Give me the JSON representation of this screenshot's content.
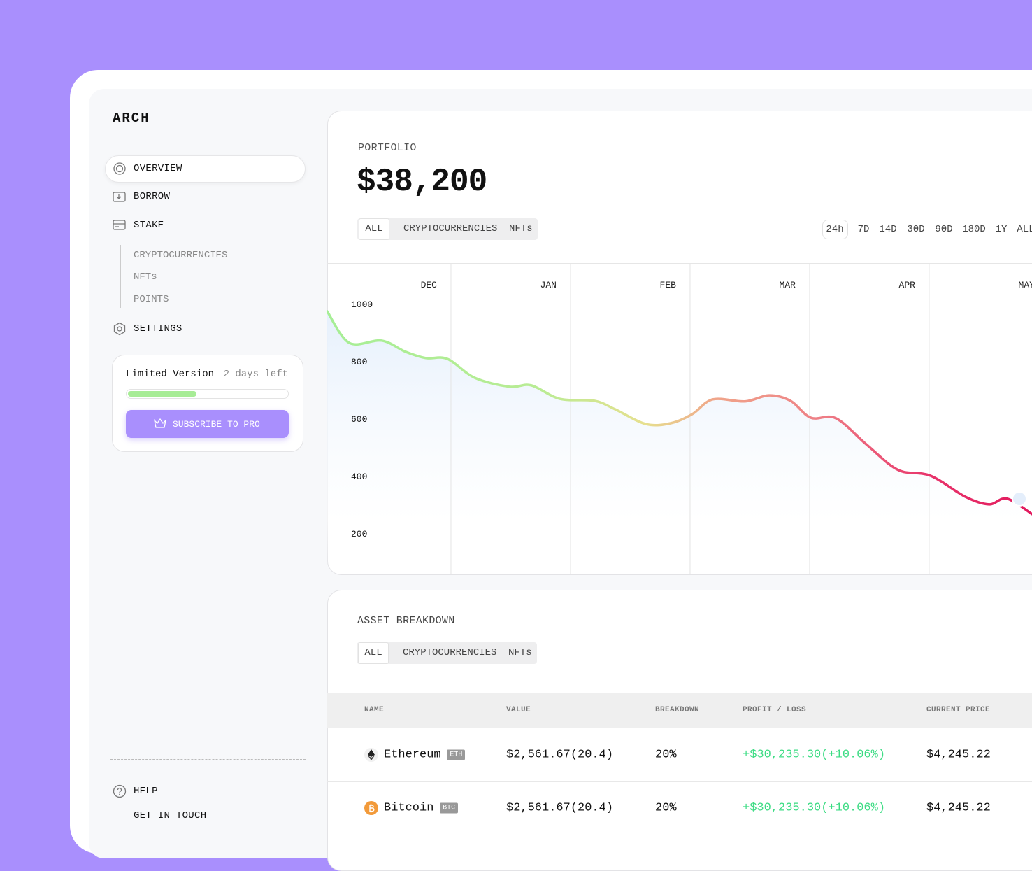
{
  "sidebar": {
    "logo": "ARCH",
    "nav": [
      "OVERVIEW",
      "BORROW",
      "STAKE"
    ],
    "sub_nav": [
      "CRYPTOCURRENCIES",
      "NFTs",
      "POINTS"
    ],
    "settings": "SETTINGS",
    "plan": {
      "title": "Limited Version",
      "remaining": "2 days left",
      "progress": 43,
      "button": "SUBSCRIBE TO PRO"
    },
    "footer": [
      "HELP",
      "GET IN TOUCH"
    ]
  },
  "portfolio": {
    "title": "PORTFOLIO",
    "total": "$38,200",
    "filters": [
      "ALL",
      "CRYPTOCURRENCIES",
      "NFTs"
    ],
    "ranges": [
      "24h",
      "7D",
      "14D",
      "30D",
      "90D",
      "180D",
      "1Y",
      "ALL"
    ],
    "chart": {
      "type": "line",
      "xlim": [
        -0.035,
        5.86
      ],
      "ylim": [
        58,
        1139
      ],
      "xticks": [
        {
          "value": 1,
          "label": "DEC"
        },
        {
          "value": 2,
          "label": "JAN"
        },
        {
          "value": 3,
          "label": "FEB"
        },
        {
          "value": 4,
          "label": "MAR"
        },
        {
          "value": 5,
          "label": "APR"
        },
        {
          "value": 6,
          "label": "MAY"
        }
      ],
      "yticks": [
        200,
        400,
        600,
        800,
        1000
      ],
      "x": [
        -0.035,
        0.15,
        0.42,
        0.62,
        0.79,
        0.97,
        1.2,
        1.49,
        1.67,
        1.91,
        2.2,
        2.37,
        2.63,
        2.84,
        3.02,
        3.19,
        3.46,
        3.66,
        3.84,
        4.01,
        4.22,
        4.48,
        4.74,
        5.01,
        5.3,
        5.5,
        5.65,
        5.86
      ],
      "values": [
        973,
        863,
        871,
        832,
        810,
        807,
        741,
        710,
        715,
        668,
        661,
        632,
        580,
        583,
        615,
        666,
        659,
        680,
        661,
        602,
        600,
        507,
        420,
        400,
        327,
        300,
        320,
        266
      ]
    }
  },
  "assets": {
    "title": "ASSET BREAKDOWN",
    "filters": [
      "ALL",
      "CRYPTOCURRENCIES",
      "NFTs"
    ],
    "table": {
      "columns": [
        "NAME",
        "VALUE",
        "BREAKDOWN",
        "PROFIT / LOSS",
        "CURRENT PRICE"
      ],
      "rows": [
        [
          "Ethereum",
          "ETH",
          "$2,561.67(20.4)",
          "20%",
          "+$30,235.30(+10.06%)",
          "$4,245.22"
        ],
        [
          "Bitcoin",
          "BTC",
          "$2,561.67(20.4)",
          "20%",
          "+$30,235.30(+10.06%)",
          "$4,245.22"
        ]
      ]
    }
  }
}
